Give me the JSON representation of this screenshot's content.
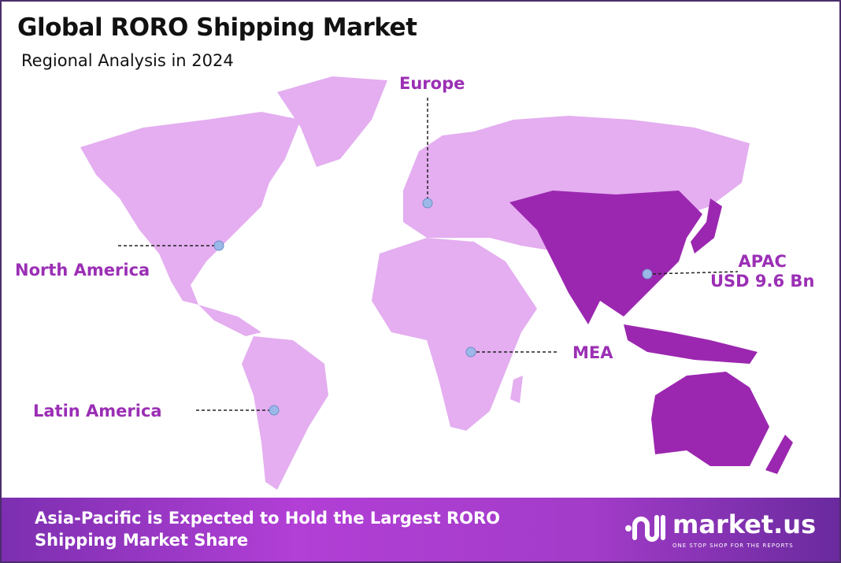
{
  "header": {
    "title": "Global RORO Shipping Market",
    "subtitle": "Regional Analysis in 2024"
  },
  "colors": {
    "land": "#e4aef0",
    "highlight": "#9b27b0",
    "label": "#9b2fb5",
    "marker": "#9bb8e8",
    "footer_start": "#7c2fb0",
    "footer_end": "#6a2a9e"
  },
  "regions": [
    {
      "name": "North America",
      "highlighted": false
    },
    {
      "name": "Europe",
      "highlighted": false
    },
    {
      "name": "APAC",
      "value": "USD 9.6 Bn",
      "highlighted": true
    },
    {
      "name": "MEA",
      "highlighted": false
    },
    {
      "name": "Latin America",
      "highlighted": false
    }
  ],
  "footer": {
    "line1": "Asia-Pacific is Expected to Hold the Largest RORO",
    "line2": "Shipping Market Share"
  },
  "logo": {
    "name": "market.us",
    "tagline": "ONE STOP SHOP FOR THE REPORTS"
  }
}
